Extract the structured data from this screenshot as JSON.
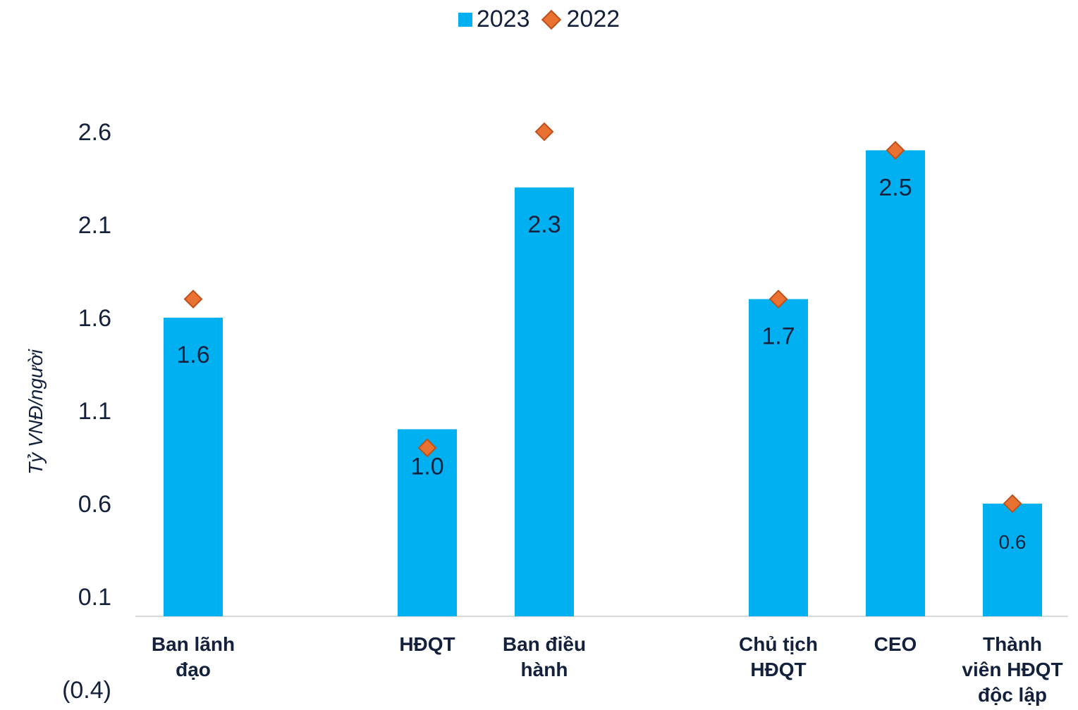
{
  "chart_data": {
    "type": "bar",
    "ylabel": "Tỷ VNĐ/người",
    "ylim": [
      -0.4,
      2.6
    ],
    "y_ticks": [
      "(0.4)",
      "0.1",
      "0.6",
      "1.1",
      "1.6",
      "2.1",
      "2.6"
    ],
    "y_tick_values": [
      -0.4,
      0.1,
      0.6,
      1.1,
      1.6,
      2.1,
      2.6
    ],
    "legend_position": "top-center",
    "grid": false,
    "categories": [
      {
        "lines": [
          "Ban lãnh",
          "đạo"
        ],
        "slot": 0
      },
      {
        "lines": [
          "HĐQT"
        ],
        "slot": 2
      },
      {
        "lines": [
          "Ban điều",
          "hành"
        ],
        "slot": 3
      },
      {
        "lines": [
          "Chủ tịch",
          "HĐQT"
        ],
        "slot": 5
      },
      {
        "lines": [
          "CEO"
        ],
        "slot": 6
      },
      {
        "lines": [
          "Thành",
          "viên HĐQT",
          "độc lập"
        ],
        "slot": 7
      }
    ],
    "series": [
      {
        "name": "2023",
        "kind": "bar",
        "color": "#00b0f0",
        "values": [
          1.6,
          1.0,
          2.3,
          1.7,
          2.5,
          0.6
        ],
        "labels": [
          "1.6",
          "1.0",
          "2.3",
          "1.7",
          "2.5",
          "0.6"
        ]
      },
      {
        "name": "2022",
        "kind": "marker",
        "color": "#e97132",
        "values": [
          1.7,
          0.9,
          2.6,
          1.7,
          2.5,
          0.6
        ]
      }
    ]
  }
}
